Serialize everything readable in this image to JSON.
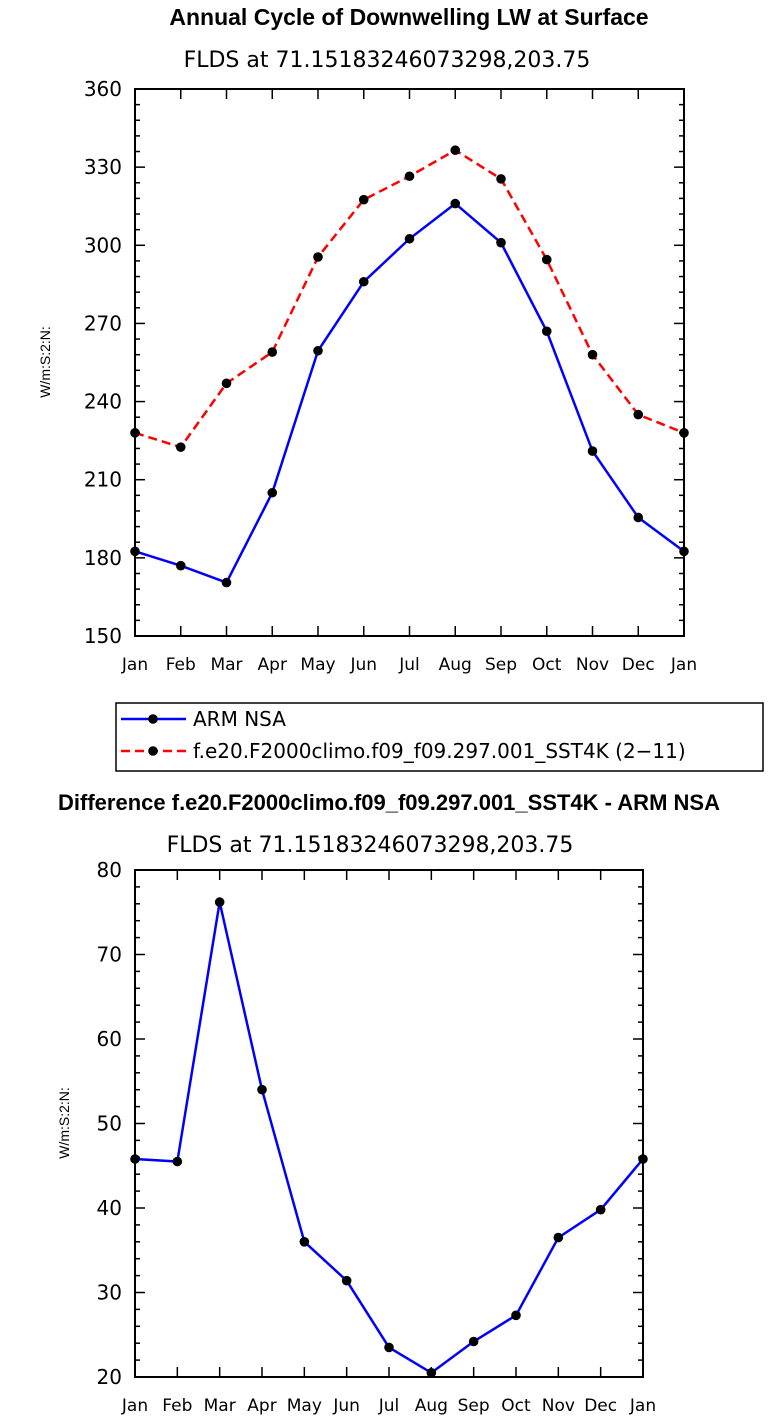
{
  "chart_data": [
    {
      "type": "line",
      "title": "Annual Cycle of Downwelling LW at Surface",
      "subtitle": "FLDS at 71.15183246073298,203.75",
      "ylabel": "W/m:S:2:N:",
      "xlabel": "",
      "categories": [
        "Jan",
        "Feb",
        "Mar",
        "Apr",
        "May",
        "Jun",
        "Jul",
        "Aug",
        "Sep",
        "Oct",
        "Nov",
        "Dec",
        "Jan"
      ],
      "ylim": [
        150,
        360
      ],
      "yticks": [
        150,
        180,
        210,
        240,
        270,
        300,
        330,
        360
      ],
      "series": [
        {
          "name": "ARM NSA",
          "color": "#0000ff",
          "dash": "solid",
          "values": [
            182.5,
            177,
            170.5,
            205,
            259.5,
            286,
            302.5,
            316,
            301,
            267,
            221,
            195.5,
            182.5
          ]
        },
        {
          "name": "f.e20.F2000climo.f09_f09.297.001_SST4K (2−11)",
          "color": "#ff0000",
          "dash": "dashed",
          "values": [
            228,
            222.5,
            247,
            259,
            295.5,
            317.5,
            326.5,
            336.5,
            325.5,
            294.5,
            258,
            235,
            228
          ]
        }
      ],
      "legend": "below"
    },
    {
      "type": "line",
      "title": "Difference f.e20.F2000climo.f09_f09.297.001_SST4K - ARM NSA",
      "subtitle": "FLDS at 71.15183246073298,203.75",
      "ylabel": "W/m:S:2:N:",
      "xlabel": "",
      "categories": [
        "Jan",
        "Feb",
        "Mar",
        "Apr",
        "May",
        "Jun",
        "Jul",
        "Aug",
        "Sep",
        "Oct",
        "Nov",
        "Dec",
        "Jan"
      ],
      "ylim": [
        20,
        80
      ],
      "yticks": [
        20,
        30,
        40,
        50,
        60,
        70,
        80
      ],
      "series": [
        {
          "color": "#0000ff",
          "dash": "solid",
          "values": [
            45.8,
            45.5,
            76.2,
            54,
            36,
            31.4,
            23.5,
            20.5,
            24.2,
            27.3,
            36.5,
            39.8,
            45.8
          ]
        }
      ]
    }
  ]
}
